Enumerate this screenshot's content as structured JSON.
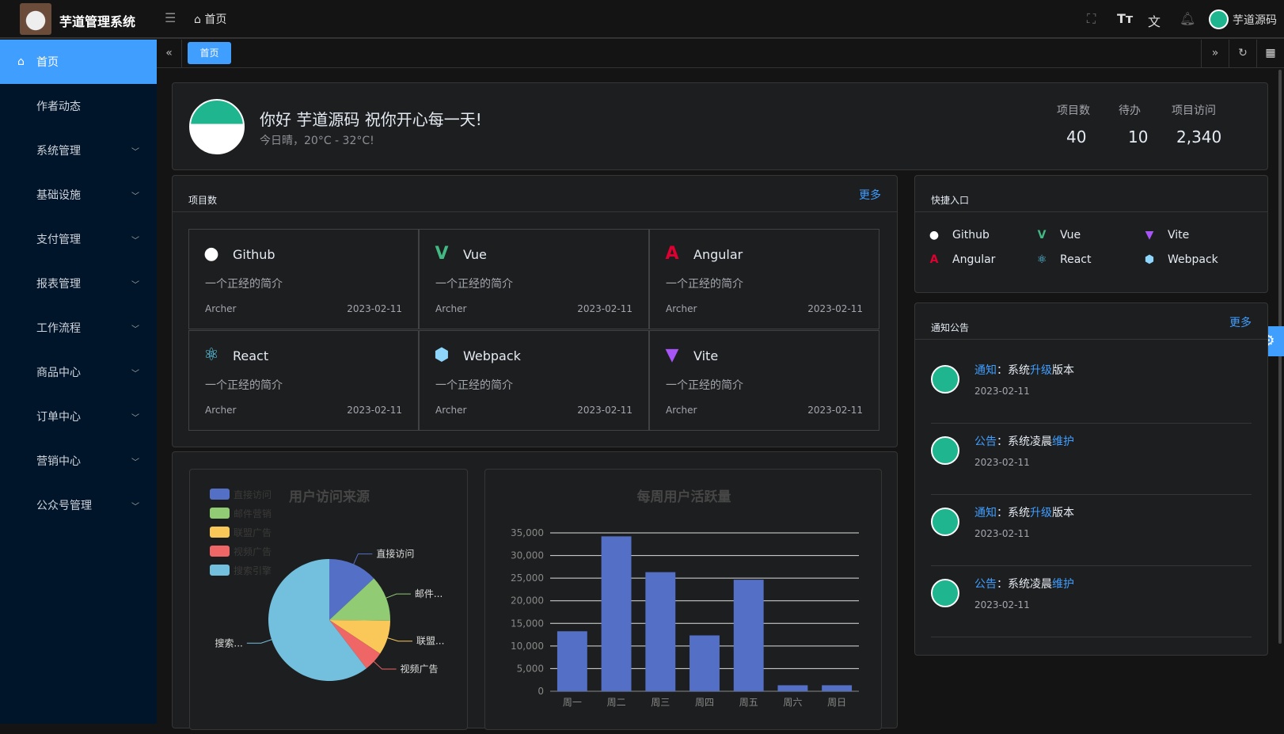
{
  "header": {
    "app_title": "芋道管理系统",
    "breadcrumb": "首页",
    "user_name": "芋道源码",
    "icons": [
      "fullscreen-icon",
      "font-size-icon",
      "translate-icon",
      "bell-icon"
    ]
  },
  "sidebar": {
    "items": [
      {
        "label": "首页",
        "active": true
      },
      {
        "label": "作者动态"
      },
      {
        "label": "系统管理",
        "expandable": true
      },
      {
        "label": "基础设施",
        "expandable": true
      },
      {
        "label": "支付管理",
        "expandable": true
      },
      {
        "label": "报表管理",
        "expandable": true
      },
      {
        "label": "工作流程",
        "expandable": true
      },
      {
        "label": "商品中心",
        "expandable": true
      },
      {
        "label": "订单中心",
        "expandable": true
      },
      {
        "label": "营销中心",
        "expandable": true
      },
      {
        "label": "公众号管理",
        "expandable": true
      }
    ]
  },
  "tabs": [
    {
      "label": "首页",
      "active": true
    }
  ],
  "welcome": {
    "greeting": "你好 芋道源码 祝你开心每一天!",
    "weather": "今日晴，20°C - 32°C!",
    "stats": [
      {
        "label": "项目数",
        "value": "40"
      },
      {
        "label": "待办",
        "value": "10"
      },
      {
        "label": "项目访问",
        "value": "2,340"
      }
    ]
  },
  "projects": {
    "title": "项目数",
    "more": "更多",
    "items": [
      {
        "name": "Github",
        "icon": "github-icon",
        "desc": "一个正经的简介",
        "author": "Archer",
        "date": "2023-02-11"
      },
      {
        "name": "Vue",
        "icon": "vue-icon",
        "desc": "一个正经的简介",
        "author": "Archer",
        "date": "2023-02-11"
      },
      {
        "name": "Angular",
        "icon": "angular-icon",
        "desc": "一个正经的简介",
        "author": "Archer",
        "date": "2023-02-11"
      },
      {
        "name": "React",
        "icon": "react-icon",
        "desc": "一个正经的简介",
        "author": "Archer",
        "date": "2023-02-11"
      },
      {
        "name": "Webpack",
        "icon": "webpack-icon",
        "desc": "一个正经的简介",
        "author": "Archer",
        "date": "2023-02-11"
      },
      {
        "name": "Vite",
        "icon": "vite-icon",
        "desc": "一个正经的简介",
        "author": "Archer",
        "date": "2023-02-11"
      }
    ]
  },
  "shortcuts": {
    "title": "快捷入口",
    "items": [
      {
        "name": "Github"
      },
      {
        "name": "Vue"
      },
      {
        "name": "Vite"
      },
      {
        "name": "Angular"
      },
      {
        "name": "React"
      },
      {
        "name": "Webpack"
      }
    ]
  },
  "notices": {
    "title": "通知公告",
    "more": "更多",
    "items": [
      {
        "type": "通知",
        "sep": "：",
        "pre": "系统",
        "hl": "升级",
        "post": "版本",
        "date": "2023-02-11"
      },
      {
        "type": "公告",
        "sep": "：",
        "pre": "系统凌晨",
        "hl": "维护",
        "post": "",
        "date": "2023-02-11"
      },
      {
        "type": "通知",
        "sep": "：",
        "pre": "系统",
        "hl": "升级",
        "post": "版本",
        "date": "2023-02-11"
      },
      {
        "type": "公告",
        "sep": "：",
        "pre": "系统凌晨",
        "hl": "维护",
        "post": "",
        "date": "2023-02-11"
      }
    ]
  },
  "chart_data": [
    {
      "type": "pie",
      "title": "用户访问来源",
      "legend": "top-left",
      "slices": [
        {
          "name": "直接访问",
          "value": 335,
          "color": "#5470c6",
          "label": "直接访问"
        },
        {
          "name": "邮件营销",
          "value": 310,
          "color": "#91cc75",
          "label": "邮件..."
        },
        {
          "name": "联盟广告",
          "value": 234,
          "color": "#fac858",
          "label": "联盟..."
        },
        {
          "name": "视频广告",
          "value": 135,
          "color": "#ee6666",
          "label": "视频广告"
        },
        {
          "name": "搜索引擎",
          "value": 1548,
          "color": "#73c0de",
          "label": "搜索..."
        }
      ]
    },
    {
      "type": "bar",
      "title": "每周用户活跃量",
      "categories": [
        "周一",
        "周二",
        "周三",
        "周四",
        "周五",
        "周六",
        "周日"
      ],
      "values": [
        13253,
        34235,
        26321,
        12340,
        24643,
        1322,
        1324
      ],
      "ylim": [
        0,
        35000
      ],
      "yticks": [
        "0",
        "5,000",
        "10,000",
        "15,000",
        "20,000",
        "25,000",
        "30,000",
        "35,000"
      ],
      "color": "#5470c6",
      "grid": true
    }
  ]
}
